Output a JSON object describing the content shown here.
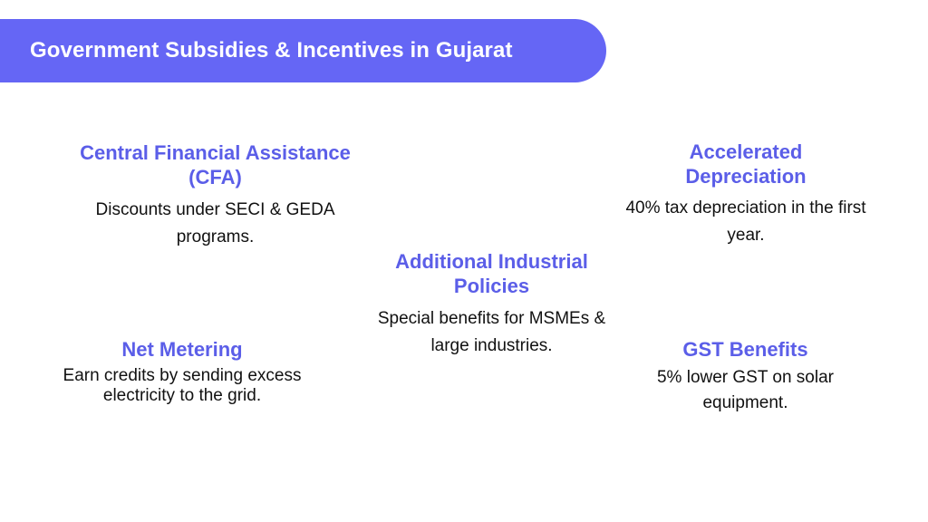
{
  "header": {
    "title": "Government Subsidies & Incentives in Gujarat"
  },
  "cards": [
    {
      "title": "Central Financial Assistance (CFA)",
      "description": "Discounts under SECI & GEDA programs."
    },
    {
      "title": "Accelerated Depreciation",
      "description": "40% tax depreciation in the first year."
    },
    {
      "title": "Additional Industrial Policies",
      "description": "Special benefits for MSMEs & large industries."
    },
    {
      "title": "Net Metering",
      "description": "Earn credits by sending excess electricity to the grid."
    },
    {
      "title": "GST Benefits",
      "description": "5% lower GST on solar equipment."
    }
  ],
  "colors": {
    "banner": "#6566f5",
    "heading": "#5b5ee8",
    "body_text": "#111111",
    "background": "#ffffff"
  }
}
